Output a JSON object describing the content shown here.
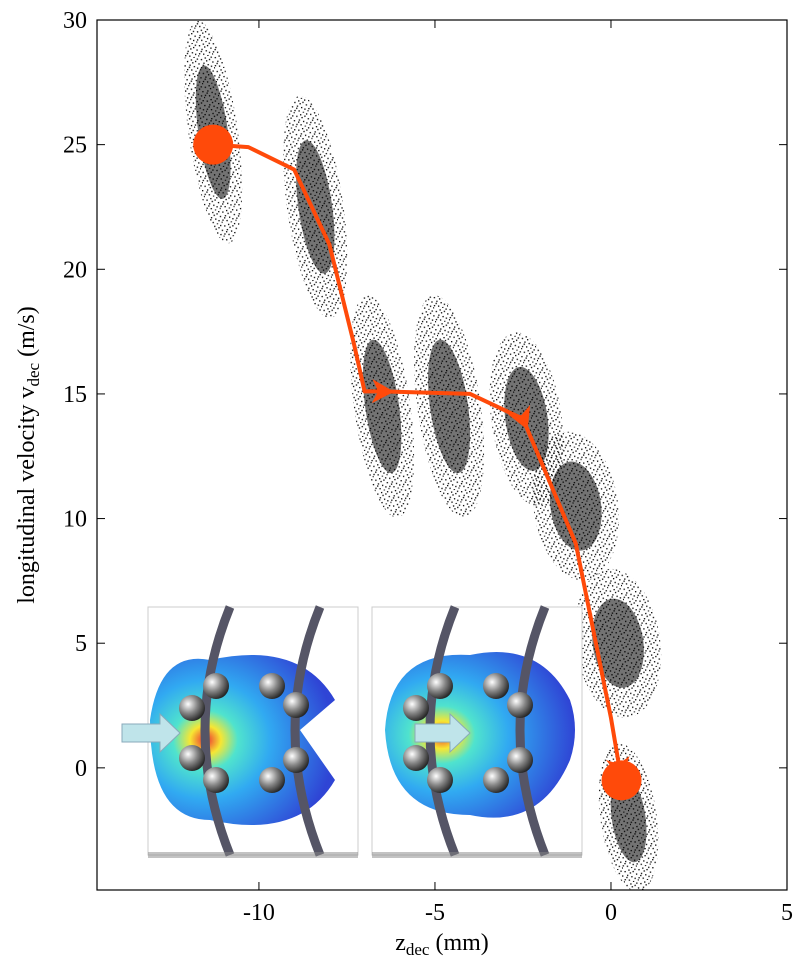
{
  "chart_data": {
    "type": "scatter",
    "x_label": "z",
    "x_label_sub": "dec",
    "x_label_unit": " (mm)",
    "y_label": "longitudinal velocity v",
    "y_label_sub": "dec",
    "y_label_unit": " (m/s)",
    "xlim": [
      -14.6,
      5
    ],
    "ylim": [
      -4.9,
      30
    ],
    "xticks": [
      -10,
      -5,
      0,
      5
    ],
    "yticks": [
      0,
      5,
      10,
      15,
      20,
      25,
      30
    ],
    "clusters": {
      "color": "#000000",
      "x": [
        -11.3,
        -8.4,
        -6.5,
        -4.6,
        -2.4,
        -1.0,
        0.2,
        0.5
      ],
      "values": [
        25.5,
        22.5,
        14.5,
        14.5,
        14.0,
        10.5,
        5.0,
        -2.0
      ],
      "x_spread": [
        0.7,
        0.8,
        0.8,
        0.9,
        1.0,
        1.2,
        1.2,
        0.8
      ],
      "y_spread": [
        4.5,
        4.5,
        4.5,
        4.5,
        3.5,
        3.0,
        3.0,
        3.0
      ]
    },
    "trajectory": {
      "color": "#ff4a0a",
      "x": [
        -11.3,
        -10.3,
        -9.0,
        -8.0,
        -7.3,
        -7.0,
        -6.5,
        -4.0,
        -2.5,
        -1.0,
        0.0,
        0.3
      ],
      "values": [
        25.0,
        24.9,
        24.0,
        21.0,
        17.0,
        15.1,
        15.1,
        15.0,
        14.0,
        9.0,
        2.0,
        -0.5
      ]
    }
  }
}
